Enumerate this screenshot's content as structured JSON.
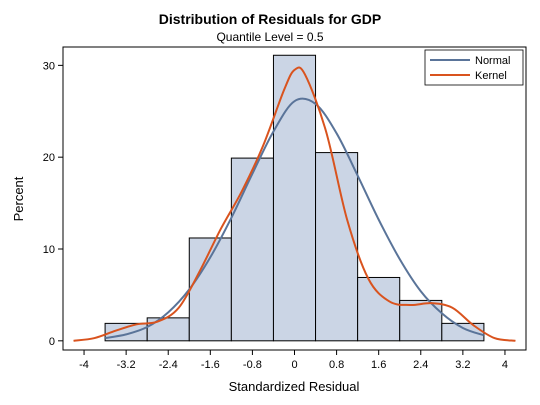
{
  "chart_data": {
    "type": "histogram",
    "title": "Distribution of Residuals for GDP",
    "subtitle": "Quantile Level = 0.5",
    "xlabel": "Standardized Residual",
    "ylabel": "Percent",
    "xlim": [
      -4.4,
      4.4
    ],
    "ylim": [
      -1,
      32
    ],
    "x_ticks": [
      -4,
      -3.2,
      -2.4,
      -1.6,
      -0.8,
      0,
      0.8,
      1.6,
      2.4,
      3.2,
      4
    ],
    "x_tick_labels": [
      "-4",
      "-3.2",
      "-2.4",
      "-1.6",
      "-0.8",
      "0",
      "0.8",
      "1.6",
      "2.4",
      "3.2",
      "4"
    ],
    "y_ticks": [
      0,
      10,
      20,
      30
    ],
    "y_tick_labels": [
      "0",
      "10",
      "20",
      "30"
    ],
    "bins": [
      {
        "x0": -3.6,
        "x1": -2.8,
        "value": 1.9
      },
      {
        "x0": -2.8,
        "x1": -2.0,
        "value": 2.5
      },
      {
        "x0": -2.0,
        "x1": -1.2,
        "value": 11.2
      },
      {
        "x0": -1.2,
        "x1": -0.4,
        "value": 19.9
      },
      {
        "x0": -0.4,
        "x1": 0.4,
        "value": 31.1
      },
      {
        "x0": 0.4,
        "x1": 1.2,
        "value": 20.5
      },
      {
        "x0": 1.2,
        "x1": 2.0,
        "value": 6.9
      },
      {
        "x0": 2.0,
        "x1": 2.8,
        "value": 4.4
      },
      {
        "x0": 2.8,
        "x1": 3.6,
        "value": 1.9
      }
    ],
    "series": [
      {
        "name": "Normal",
        "color": "#5a7499",
        "x": [
          -3.6,
          -3.2,
          -2.8,
          -2.4,
          -2.0,
          -1.6,
          -1.2,
          -0.8,
          -0.4,
          0.0,
          0.4,
          0.8,
          1.2,
          1.6,
          2.0,
          2.4,
          2.8,
          3.2,
          3.6
        ],
        "y": [
          0.3,
          0.7,
          1.5,
          3.1,
          5.6,
          9.1,
          13.4,
          18.2,
          22.8,
          26.1,
          25.8,
          22.6,
          18.0,
          13.2,
          8.9,
          5.4,
          3.0,
          1.4,
          0.6
        ]
      },
      {
        "name": "Kernel",
        "color": "#d9531e",
        "x": [
          -4.2,
          -3.8,
          -3.4,
          -3.0,
          -2.6,
          -2.2,
          -1.8,
          -1.4,
          -1.0,
          -0.6,
          -0.2,
          0.0,
          0.2,
          0.6,
          1.0,
          1.4,
          1.8,
          2.2,
          2.6,
          3.0,
          3.4,
          3.8,
          4.2
        ],
        "y": [
          0.0,
          0.3,
          1.1,
          1.8,
          2.1,
          3.6,
          7.6,
          12.2,
          16.3,
          21.2,
          27.3,
          29.5,
          29.0,
          22.8,
          13.2,
          6.8,
          4.3,
          3.9,
          4.1,
          3.6,
          1.7,
          0.3,
          0.0
        ]
      }
    ],
    "legend": {
      "position": "top-right",
      "items": [
        {
          "label": "Normal",
          "color": "#5a7499"
        },
        {
          "label": "Kernel",
          "color": "#d9531e"
        }
      ]
    },
    "bar_fill": "#cbd5e5",
    "bar_stroke": "#000000",
    "grid": false
  }
}
